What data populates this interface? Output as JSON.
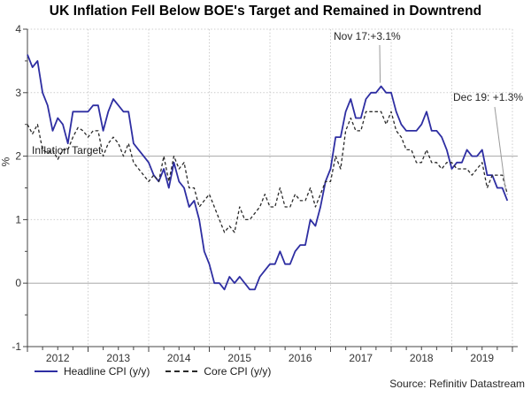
{
  "source": "Source: Refinitiv Datastream",
  "chart_data": {
    "type": "line",
    "title": "UK Inflation Fell Below BOE's Target and Remained in Downtrend",
    "xlabel": "",
    "ylabel": "%",
    "ylim": [
      -1,
      4
    ],
    "grid": true,
    "legend_position": "bottom",
    "x_unit": "monthly, Jan 2012 - Dec 2019",
    "x_tick_labels": [
      "2012",
      "2013",
      "2014",
      "2015",
      "2016",
      "2017",
      "2018",
      "2019"
    ],
    "y_ticks": [
      4,
      3,
      2,
      1,
      0,
      -1
    ],
    "y_tick_labels": [
      "4",
      "3",
      "2",
      "1",
      "0",
      "-1"
    ],
    "reference_lines": [
      {
        "y": 2,
        "label": "Inflation Target"
      },
      {
        "y": 0,
        "label": ""
      }
    ],
    "annotations": [
      {
        "text": "Nov 17:+3.1%",
        "month": "2017-11",
        "value": 3.1
      },
      {
        "text": "Dec 19: +1.3%",
        "month": "2019-12",
        "value": 1.3
      }
    ],
    "series": [
      {
        "name": "Headline CPI (y/y)",
        "style": "solid",
        "color": "#2e2ea2",
        "values": [
          3.6,
          3.4,
          3.5,
          3.0,
          2.8,
          2.4,
          2.6,
          2.5,
          2.2,
          2.7,
          2.7,
          2.7,
          2.7,
          2.8,
          2.8,
          2.4,
          2.7,
          2.9,
          2.8,
          2.7,
          2.7,
          2.2,
          2.1,
          2.0,
          1.9,
          1.7,
          1.6,
          1.8,
          1.5,
          1.9,
          1.6,
          1.5,
          1.2,
          1.3,
          1.0,
          0.5,
          0.3,
          0.0,
          0.0,
          -0.1,
          0.1,
          0.0,
          0.1,
          0.0,
          -0.1,
          -0.1,
          0.1,
          0.2,
          0.3,
          0.3,
          0.5,
          0.3,
          0.3,
          0.5,
          0.6,
          0.6,
          1.0,
          0.9,
          1.2,
          1.6,
          1.8,
          2.3,
          2.3,
          2.7,
          2.9,
          2.6,
          2.6,
          2.9,
          3.0,
          3.0,
          3.1,
          3.0,
          3.0,
          2.7,
          2.5,
          2.4,
          2.4,
          2.4,
          2.5,
          2.7,
          2.4,
          2.4,
          2.3,
          2.1,
          1.8,
          1.9,
          1.9,
          2.1,
          2.0,
          2.0,
          2.1,
          1.7,
          1.7,
          1.5,
          1.5,
          1.3
        ]
      },
      {
        "name": "Core CPI (y/y)",
        "style": "dashed",
        "color": "#2a2a2a",
        "values": [
          2.5,
          2.35,
          2.5,
          2.1,
          2.05,
          2.1,
          1.95,
          2.1,
          2.1,
          2.3,
          2.45,
          2.4,
          2.3,
          2.4,
          2.4,
          2.0,
          2.2,
          2.3,
          2.2,
          2.0,
          2.2,
          1.9,
          1.8,
          1.7,
          1.6,
          1.7,
          1.6,
          2.0,
          1.6,
          2.0,
          1.8,
          1.9,
          1.5,
          1.5,
          1.2,
          1.3,
          1.4,
          1.2,
          1.0,
          0.8,
          0.9,
          0.8,
          1.2,
          1.0,
          1.0,
          1.1,
          1.2,
          1.4,
          1.2,
          1.2,
          1.5,
          1.2,
          1.2,
          1.4,
          1.3,
          1.3,
          1.5,
          1.2,
          1.4,
          1.6,
          1.6,
          2.0,
          1.8,
          2.4,
          2.6,
          2.4,
          2.4,
          2.7,
          2.7,
          2.7,
          2.7,
          2.5,
          2.7,
          2.4,
          2.3,
          2.1,
          2.1,
          1.9,
          1.9,
          2.1,
          1.9,
          1.9,
          1.8,
          1.9,
          1.9,
          1.8,
          1.8,
          1.8,
          1.7,
          1.8,
          1.9,
          1.5,
          1.7,
          1.7,
          1.7,
          1.4
        ]
      }
    ]
  }
}
